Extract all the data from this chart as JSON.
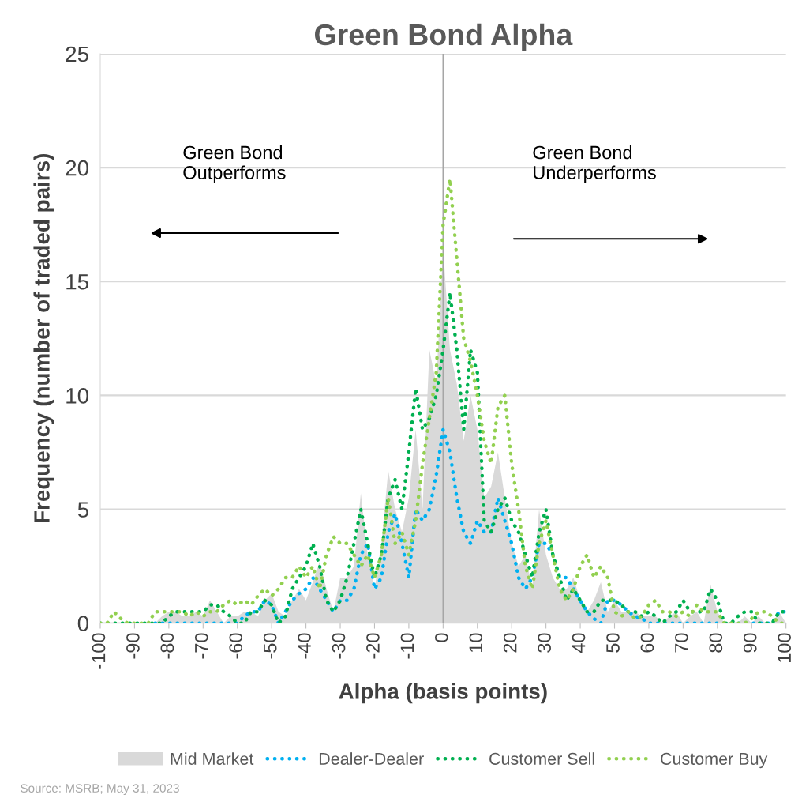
{
  "chart_data": {
    "type": "line",
    "title": "Green Bond Alpha",
    "xlabel": "Alpha (basis points)",
    "ylabel": "Frequency (number of traded pairs)",
    "x": [
      -100,
      -98,
      -96,
      -94,
      -92,
      -90,
      -88,
      -86,
      -84,
      -82,
      -80,
      -78,
      -76,
      -74,
      -72,
      -70,
      -68,
      -66,
      -64,
      -62,
      -60,
      -58,
      -56,
      -54,
      -52,
      -50,
      -48,
      -46,
      -44,
      -42,
      -40,
      -38,
      -36,
      -34,
      -32,
      -30,
      -28,
      -26,
      -24,
      -22,
      -20,
      -18,
      -16,
      -14,
      -12,
      -10,
      -8,
      -6,
      -4,
      -2,
      0,
      2,
      4,
      6,
      8,
      10,
      12,
      14,
      16,
      18,
      20,
      22,
      24,
      26,
      28,
      30,
      32,
      34,
      36,
      38,
      40,
      42,
      44,
      46,
      48,
      50,
      52,
      54,
      56,
      58,
      60,
      62,
      64,
      66,
      68,
      70,
      72,
      74,
      76,
      78,
      80,
      82,
      84,
      86,
      88,
      90,
      92,
      94,
      96,
      98,
      100
    ],
    "series": [
      {
        "name": "Mid Market",
        "type": "area",
        "color": "#d9d9d9",
        "values": [
          0,
          0,
          0,
          0,
          0,
          0,
          0,
          0,
          0,
          0.3,
          0.5,
          0.5,
          0.3,
          0.3,
          0.5,
          0.3,
          1.0,
          0.5,
          0,
          0.3,
          0.3,
          0.5,
          0.5,
          0.3,
          1.0,
          1.3,
          0.5,
          0.3,
          1.0,
          1.5,
          1.0,
          1.8,
          2.7,
          1.5,
          0.5,
          2.0,
          2.0,
          2.5,
          5.7,
          3.0,
          1.5,
          3.5,
          6.7,
          5.0,
          4.0,
          5.5,
          8.5,
          5.0,
          12.0,
          10.5,
          16.5,
          12.0,
          10.5,
          8.0,
          10.0,
          8.5,
          5.5,
          6.0,
          7.5,
          5.5,
          3.5,
          2.5,
          3.0,
          1.5,
          5.0,
          3.0,
          2.0,
          1.5,
          1.5,
          2.0,
          1.0,
          0.5,
          1.0,
          1.8,
          0.5,
          1.0,
          0.5,
          0.5,
          0.5,
          0.3,
          0.3,
          0.3,
          0,
          0.3,
          0.5,
          0,
          0.3,
          0.5,
          0,
          1.7,
          0.5,
          0,
          0,
          0,
          0.3,
          0,
          0.3,
          0,
          0,
          0.5,
          0
        ]
      },
      {
        "name": "Dealer-Dealer",
        "color": "#00b0f0",
        "values": [
          null,
          null,
          null,
          null,
          null,
          null,
          null,
          null,
          0,
          0,
          0,
          0,
          0,
          0,
          0,
          0,
          0,
          0,
          0,
          0,
          0,
          0.3,
          0.5,
          0.5,
          1.0,
          0.8,
          0,
          0.5,
          1.0,
          1.3,
          1.5,
          2.0,
          1.5,
          1.0,
          0.5,
          1.0,
          1.0,
          1.5,
          3.0,
          3.5,
          1.5,
          2.0,
          4.0,
          4.8,
          3.5,
          2.0,
          5.0,
          4.5,
          5.0,
          6.5,
          8.5,
          7.5,
          5.5,
          4.0,
          3.5,
          4.5,
          4.0,
          4.0,
          5.5,
          4.5,
          3.5,
          2.0,
          1.5,
          2.0,
          3.5,
          3.5,
          3.0,
          2.0,
          2.0,
          1.5,
          1.0,
          0.5,
          0.2,
          0,
          1.0,
          1.0,
          0.8,
          0.5,
          0.3,
          0.2,
          0,
          0,
          0,
          0,
          0,
          0,
          0,
          0,
          0,
          0,
          0,
          0,
          0,
          0,
          0,
          0,
          0,
          0,
          0,
          0.5,
          0.5
        ]
      },
      {
        "name": "Customer Sell",
        "color": "#00b050",
        "values": [
          0,
          0,
          0,
          0,
          0,
          0,
          0,
          0,
          0,
          0,
          0.3,
          0.5,
          0.5,
          0.5,
          0.5,
          0.5,
          0.8,
          0.8,
          0.5,
          0.3,
          0,
          0,
          0.5,
          0.5,
          1.0,
          0.8,
          0,
          0.3,
          1.5,
          2.0,
          2.5,
          3.5,
          2.5,
          1.0,
          0.5,
          1.0,
          2.0,
          3.5,
          5.0,
          3.5,
          2.0,
          3.0,
          5.5,
          6.3,
          5.0,
          7.5,
          10.3,
          8.5,
          9.0,
          10.0,
          12.0,
          14.5,
          12.0,
          8.5,
          12.0,
          11.0,
          4.5,
          4.0,
          5.0,
          5.5,
          4.5,
          4.0,
          3.0,
          2.0,
          4.0,
          5.0,
          3.0,
          2.0,
          1.0,
          1.5,
          1.0,
          0.5,
          0.5,
          1.0,
          1.0,
          1.0,
          0.8,
          0.5,
          0.5,
          0.3,
          0.5,
          0.3,
          0,
          0.3,
          0.5,
          1.0,
          0.5,
          0.5,
          0.5,
          1.5,
          1.0,
          0,
          0,
          0.3,
          0.5,
          0.5,
          0,
          0,
          0,
          0.5,
          0.5
        ]
      },
      {
        "name": "Customer Buy",
        "color": "#92d050",
        "values": [
          0,
          0,
          0.5,
          0.2,
          0,
          0,
          0,
          0,
          0.5,
          0.5,
          0.5,
          0.5,
          0.5,
          0.3,
          0.5,
          0.3,
          0.5,
          0.5,
          0.8,
          1.0,
          0.8,
          1.0,
          0.8,
          1.2,
          1.5,
          1.2,
          1.5,
          2.0,
          2.0,
          2.5,
          2.0,
          2.5,
          1.5,
          3.0,
          3.8,
          3.5,
          3.5,
          3.0,
          2.5,
          3.0,
          2.0,
          3.0,
          5.5,
          3.5,
          4.0,
          3.0,
          4.5,
          7.0,
          9.0,
          11.0,
          17.5,
          19.5,
          16.0,
          12.5,
          11.5,
          10.0,
          8.0,
          7.0,
          9.5,
          10.0,
          7.0,
          5.0,
          2.5,
          1.5,
          3.5,
          4.5,
          3.0,
          1.5,
          1.0,
          1.5,
          2.5,
          3.0,
          2.0,
          2.5,
          2.0,
          0.5,
          0.3,
          0.5,
          0.2,
          0.3,
          0.8,
          1.0,
          0.5,
          0.5,
          0.3,
          0.5,
          0.3,
          0.8,
          0.5,
          0.5,
          0.5,
          0,
          0,
          0,
          0,
          0.2,
          0.5,
          0.5,
          0.3,
          0,
          0
        ]
      }
    ],
    "xlim": [
      -100,
      100
    ],
    "xticks": [
      -100,
      -90,
      -80,
      -70,
      -60,
      -50,
      -40,
      -30,
      -20,
      -10,
      0,
      10,
      20,
      30,
      40,
      50,
      60,
      70,
      80,
      90,
      100
    ],
    "ylim": [
      0,
      25
    ],
    "yticks": [
      0,
      5,
      10,
      15,
      20,
      25
    ],
    "grid": "y",
    "legend": "bottom",
    "line_style": "dotted",
    "marker": "none",
    "ref_lines": [
      {
        "axis": "x",
        "value": 0,
        "color": "#a6a6a6"
      }
    ],
    "annotations": [
      "Green Bond\nOutperforms",
      "Green Bond\nUnderperforms",
      "Source: MSRB; May 31, 2023"
    ]
  }
}
